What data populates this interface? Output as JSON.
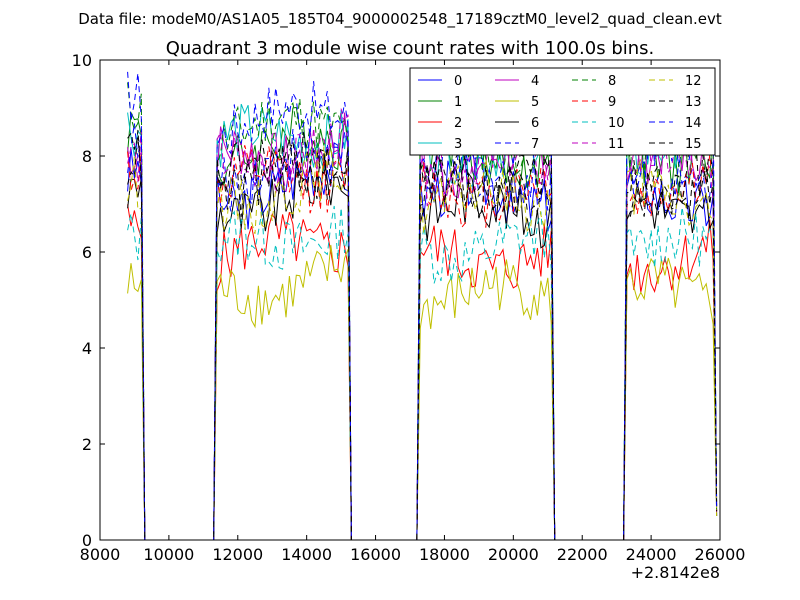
{
  "figure": {
    "suptitle": "Data file: modeM0/AS1A05_185T04_9000002548_17189cztM0_level2_quad_clean.evt"
  },
  "chart_data": {
    "type": "line",
    "title": "Quadrant 3 module wise count rates with 100.0s bins.",
    "xlabel": "",
    "ylabel": "",
    "x_offset_label": "+2.8142e8",
    "xlim": [
      8000,
      26000
    ],
    "ylim": [
      0,
      10
    ],
    "x_ticks": [
      8000,
      10000,
      12000,
      14000,
      16000,
      18000,
      20000,
      22000,
      24000,
      26000
    ],
    "x_tick_labels": [
      "8000",
      "10000",
      "12000",
      "14000",
      "16000",
      "18000",
      "20000",
      "22000",
      "24000",
      "26000"
    ],
    "y_ticks": [
      0,
      2,
      4,
      6,
      8,
      10
    ],
    "y_tick_labels": [
      "0",
      "2",
      "4",
      "6",
      "8",
      "10"
    ],
    "grid": false,
    "legend_position": "top-right",
    "legend_columns": 4,
    "segments": [
      {
        "start": 8800,
        "end": 9200
      },
      {
        "start": 11400,
        "end": 15200
      },
      {
        "start": 17300,
        "end": 21100
      },
      {
        "start": 23300,
        "end": 25800
      }
    ],
    "zero_gaps": [
      {
        "start": 9300,
        "end": 11300
      },
      {
        "start": 15300,
        "end": 17200
      },
      {
        "start": 21200,
        "end": 23200
      }
    ],
    "series": [
      {
        "name": "0",
        "color": "#0000ff",
        "dash": "solid",
        "level": 7.2
      },
      {
        "name": "1",
        "color": "#008000",
        "dash": "solid",
        "level": 8.0
      },
      {
        "name": "2",
        "color": "#ff0000",
        "dash": "solid",
        "level": 5.9
      },
      {
        "name": "3",
        "color": "#00bfbf",
        "dash": "solid",
        "level": 8.2
      },
      {
        "name": "4",
        "color": "#bf00bf",
        "dash": "solid",
        "level": 7.9
      },
      {
        "name": "5",
        "color": "#bfbf00",
        "dash": "solid",
        "level": 5.1
      },
      {
        "name": "6",
        "color": "#000000",
        "dash": "solid",
        "level": 6.9
      },
      {
        "name": "7",
        "color": "#0000ff",
        "dash": "dashed",
        "level": 7.6
      },
      {
        "name": "8",
        "color": "#008000",
        "dash": "dashed",
        "level": 8.4
      },
      {
        "name": "9",
        "color": "#ff0000",
        "dash": "dashed",
        "level": 7.3
      },
      {
        "name": "10",
        "color": "#00bfbf",
        "dash": "dashed",
        "level": 6.1
      },
      {
        "name": "11",
        "color": "#bf00bf",
        "dash": "dashed",
        "level": 7.8
      },
      {
        "name": "12",
        "color": "#bfbf00",
        "dash": "dashed",
        "level": 7.1
      },
      {
        "name": "13",
        "color": "#000000",
        "dash": "dashed",
        "level": 7.4
      },
      {
        "name": "14",
        "color": "#0000ff",
        "dash": "dashed",
        "level": 8.6
      },
      {
        "name": "15",
        "color": "#000000",
        "dash": "dashed",
        "level": 7.5
      }
    ]
  }
}
